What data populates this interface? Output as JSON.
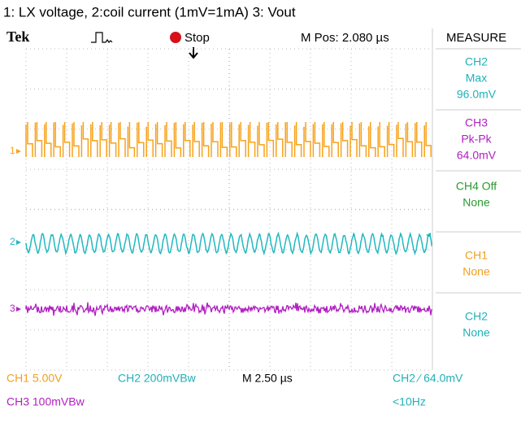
{
  "caption": "1: LX voltage, 2:coil current (1mV=1mA) 3: Vout",
  "header": {
    "brand": "Tek",
    "state": "Stop",
    "position": "M Pos: 2.080 µs",
    "panel_title": "MEASURE"
  },
  "channel_markers": [
    "1",
    "2",
    "3"
  ],
  "measurements": [
    [
      "CH2",
      "Max",
      "96.0mV"
    ],
    [
      "CH3",
      "Pk-Pk",
      "64.0mV"
    ],
    [
      "CH4 Off",
      "None"
    ],
    [
      "CH1",
      "None"
    ],
    [
      "CH2",
      "None"
    ]
  ],
  "status": {
    "ch1": "CH1  5.00V",
    "ch2": "CH2  200mVBw",
    "timebase": "M 2.50 µs",
    "trigger": "CH2 ∕ 64.0mV",
    "ch3": "CH3  100mVBw",
    "frequency": "<10Hz"
  }
}
